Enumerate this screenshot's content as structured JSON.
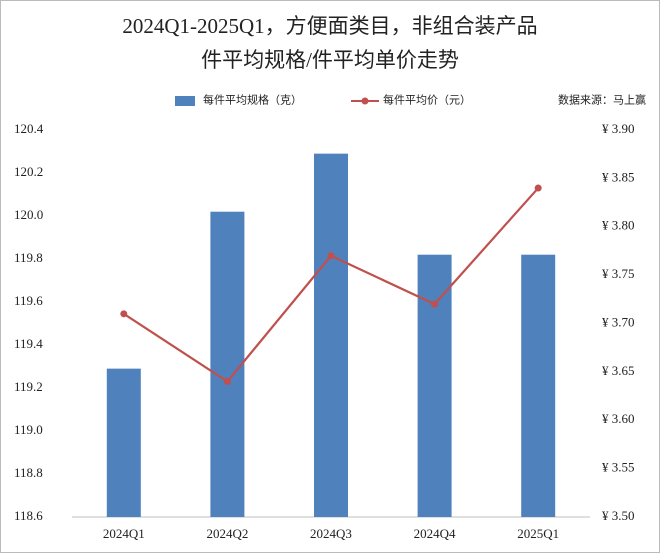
{
  "chart_data": {
    "type": "bar_line",
    "title": [
      "2024Q1-2025Q1，方便面类目，非组合装产品",
      "件平均规格/件平均单价走势"
    ],
    "source": "数据来源：马上赢",
    "categories": [
      "2024Q1",
      "2024Q2",
      "2024Q3",
      "2024Q4",
      "2025Q1"
    ],
    "series": [
      {
        "name": "每件平均规格（克）",
        "type": "bar",
        "color": "#4f81bd",
        "values": [
          119.29,
          120.02,
          120.29,
          119.82,
          119.82
        ]
      },
      {
        "name": "每件平均价（元）",
        "type": "line",
        "axis": "y2",
        "color": "#c0504d",
        "values": [
          3.71,
          3.64,
          3.77,
          3.72,
          3.84
        ]
      }
    ],
    "ylim": [
      118.6,
      120.4
    ],
    "yticks": [
      118.6,
      118.8,
      {
        "value": 119.0,
        "label": "119.0"
      },
      119.2,
      119.4,
      119.6,
      119.8,
      {
        "value": 120.0,
        "label": "120.0"
      },
      120.2,
      120.4
    ],
    "y2lim": [
      3.5,
      3.9
    ],
    "y2ticks": [
      {
        "value": 3.5,
        "label": "¥ 3.50"
      },
      {
        "value": 3.55,
        "label": "¥ 3.55"
      },
      {
        "value": 3.6,
        "label": "¥ 3.60"
      },
      {
        "value": 3.65,
        "label": "¥ 3.65"
      },
      {
        "value": 3.7,
        "label": "¥ 3.70"
      },
      {
        "value": 3.75,
        "label": "¥ 3.75"
      },
      {
        "value": 3.8,
        "label": "¥ 3.80"
      },
      {
        "value": 3.85,
        "label": "¥ 3.85"
      },
      {
        "value": 3.9,
        "label": "¥ 3.90"
      }
    ],
    "grid": false
  }
}
